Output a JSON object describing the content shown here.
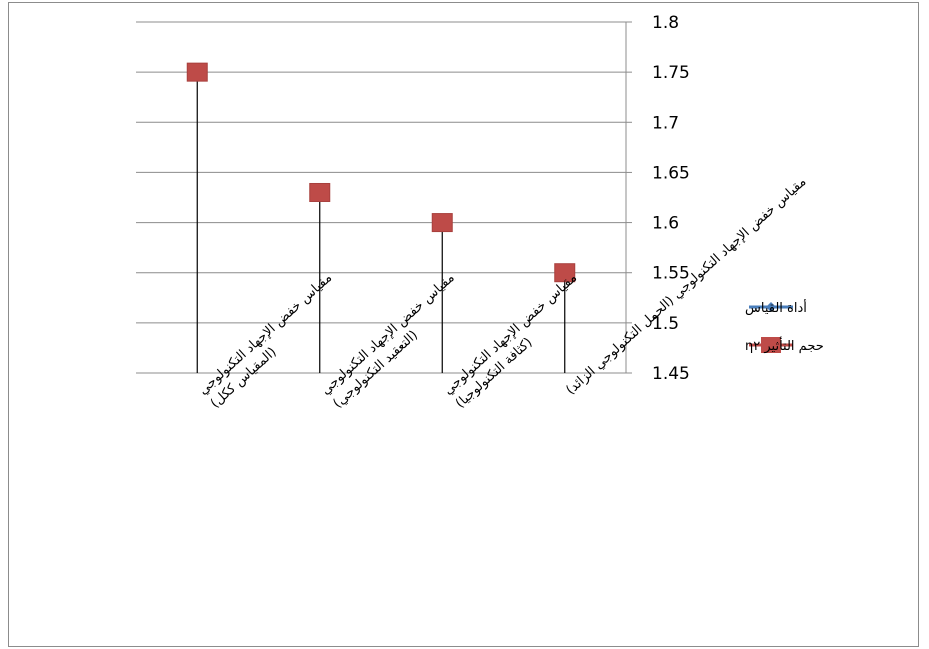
{
  "chart_data": {
    "type": "line",
    "categories": [
      [
        "مقياس خفض الإجهاد التكنولوجي",
        "(المقياس ككل)"
      ],
      [
        "مقياس خفض الإجهاد التكنولوجي",
        "(التعقيد التكنولوجي)"
      ],
      [
        "مقياس خفض الإجهاد التكنولوجي",
        "(كثافة التكنولوجيا)"
      ],
      [
        "مقياس خفض الإجهاد التكنولوجي (الحمل التكنولوجي الزائد)"
      ]
    ],
    "series": [
      {
        "name": "أداة القياس",
        "color": "#4a7ebb",
        "marker": "diamond",
        "values": [
          null,
          null,
          null,
          null
        ]
      },
      {
        "name": "حجم التأثير η٢",
        "color": "#be4b48",
        "marker": "square",
        "values": [
          1.75,
          1.63,
          1.6,
          1.55
        ]
      }
    ],
    "ylim": [
      1.45,
      1.8
    ],
    "yticks": [
      "1.8",
      "1.75",
      "1.7",
      "1.65",
      "1.6",
      "1.55",
      "1.5",
      "1.45"
    ],
    "y_axis_side": "right",
    "grid": true,
    "drop_lines": true,
    "legend_position": "right"
  }
}
